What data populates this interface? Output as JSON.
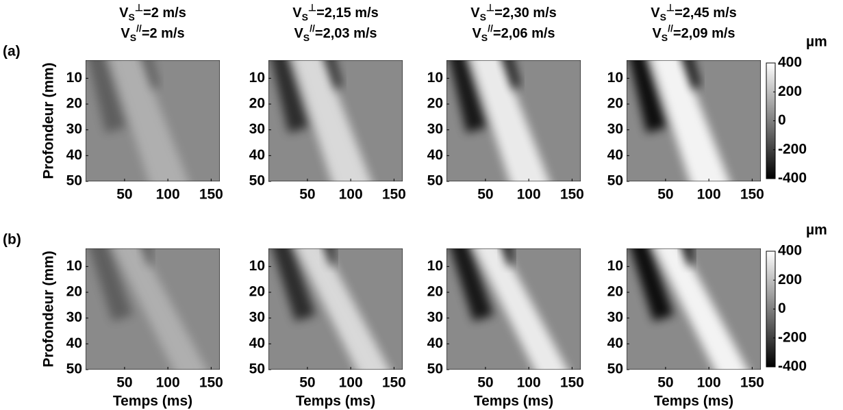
{
  "chart_data": [
    {
      "type": "heatmap",
      "panel_label": "(a)",
      "title": [
        {
          "base": "V",
          "sub": "S",
          "sup": "⊥",
          "text": "=2 m/s"
        },
        {
          "base": "V",
          "sub": "S",
          "sup": "//",
          "text": "=2 m/s"
        }
      ],
      "ylabel": "Profondeur (mm)",
      "xlim": [
        5,
        160
      ],
      "ylim": [
        3,
        50
      ],
      "y_inverted": true,
      "xticks": [
        50,
        100,
        150
      ],
      "yticks": [
        10,
        20,
        30,
        40,
        50
      ]
    },
    {
      "type": "heatmap",
      "title": [
        {
          "base": "V",
          "sub": "S",
          "sup": "⊥",
          "text": "=2,15 m/s"
        },
        {
          "base": "V",
          "sub": "S",
          "sup": "//",
          "text": "=2,03 m/s"
        }
      ],
      "xlim": [
        5,
        160
      ],
      "ylim": [
        3,
        50
      ],
      "y_inverted": true,
      "xticks": [
        50,
        100,
        150
      ],
      "yticks": [
        10,
        20,
        30,
        40,
        50
      ]
    },
    {
      "type": "heatmap",
      "title": [
        {
          "base": "V",
          "sub": "S",
          "sup": "⊥",
          "text": "=2,30 m/s"
        },
        {
          "base": "V",
          "sub": "S",
          "sup": "//",
          "text": "=2,06 m/s"
        }
      ],
      "xlim": [
        5,
        160
      ],
      "ylim": [
        3,
        50
      ],
      "y_inverted": true,
      "xticks": [
        50,
        100,
        150
      ],
      "yticks": [
        10,
        20,
        30,
        40,
        50
      ]
    },
    {
      "type": "heatmap",
      "title": [
        {
          "base": "V",
          "sub": "S",
          "sup": "⊥",
          "text": "=2,45 m/s"
        },
        {
          "base": "V",
          "sub": "S",
          "sup": "//",
          "text": "=2,09 m/s"
        }
      ],
      "xlim": [
        5,
        160
      ],
      "ylim": [
        3,
        50
      ],
      "y_inverted": true,
      "xticks": [
        50,
        100,
        150
      ],
      "yticks": [
        10,
        20,
        30,
        40,
        50
      ],
      "colorbar": {
        "label": "µm",
        "clim": [
          -400,
          400
        ],
        "ticks": [
          -400,
          -200,
          0,
          200,
          400
        ]
      }
    },
    {
      "type": "heatmap",
      "panel_label": "(b)",
      "ylabel": "Profondeur (mm)",
      "xlabel": "Temps (ms)",
      "xlim": [
        5,
        160
      ],
      "ylim": [
        3,
        50
      ],
      "y_inverted": true,
      "xticks": [
        50,
        100,
        150
      ],
      "yticks": [
        10,
        20,
        30,
        40,
        50
      ]
    },
    {
      "type": "heatmap",
      "xlabel": "Temps (ms)",
      "xlim": [
        5,
        160
      ],
      "ylim": [
        3,
        50
      ],
      "y_inverted": true,
      "xticks": [
        50,
        100,
        150
      ],
      "yticks": [
        10,
        20,
        30,
        40,
        50
      ]
    },
    {
      "type": "heatmap",
      "xlabel": "Temps (ms)",
      "xlim": [
        5,
        160
      ],
      "ylim": [
        3,
        50
      ],
      "y_inverted": true,
      "xticks": [
        50,
        100,
        150
      ],
      "yticks": [
        10,
        20,
        30,
        40,
        50
      ]
    },
    {
      "type": "heatmap",
      "xlabel": "Temps (ms)",
      "xlim": [
        5,
        160
      ],
      "ylim": [
        3,
        50
      ],
      "y_inverted": true,
      "xticks": [
        50,
        100,
        150
      ],
      "yticks": [
        10,
        20,
        30,
        40,
        50
      ],
      "colorbar": {
        "label": "µm",
        "clim": [
          -400,
          400
        ],
        "ticks": [
          -400,
          -200,
          0,
          200,
          400
        ]
      }
    }
  ]
}
